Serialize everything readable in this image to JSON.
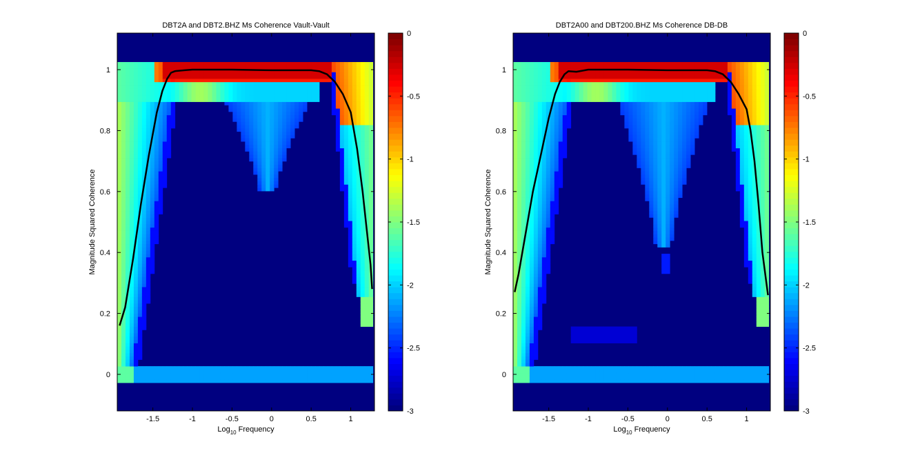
{
  "chart_data": [
    {
      "type": "heatmap",
      "title": "DBT2A and DBT2.BHZ Ms Coherence Vault-Vault",
      "xlabel_prefix": "Log",
      "xlabel_sub": "10",
      "xlabel_suffix": " Frequency",
      "ylabel": "Magnitude Squared Coherence",
      "xlim": [
        -1.95,
        1.3
      ],
      "ylim": [
        -0.12,
        1.12
      ],
      "xticks": [
        -1.5,
        -1,
        -0.5,
        0,
        0.5,
        1
      ],
      "xtick_labels": [
        "-1.5",
        "-1",
        "-0.5",
        "0",
        "0.5",
        "1"
      ],
      "yticks": [
        0,
        0.2,
        0.4,
        0.6,
        0.8,
        1
      ],
      "ytick_labels": [
        "0",
        "0.2",
        "0.4",
        "0.6",
        "0.8",
        "1"
      ],
      "colorbar": {
        "colormap": "jet",
        "clim": [
          -3,
          0
        ],
        "ticks": [
          0,
          -0.5,
          -1,
          -1.5,
          -2,
          -2.5,
          -3
        ],
        "tick_labels": [
          "0",
          "-0.5",
          "-1",
          "-1.5",
          "-2",
          "-2.5",
          "-3"
        ]
      },
      "mean_curve": {
        "color": "#000000",
        "x": [
          -1.92,
          -1.85,
          -1.75,
          -1.65,
          -1.55,
          -1.45,
          -1.38,
          -1.32,
          -1.27,
          -1.22,
          -1.1,
          -1.0,
          -0.5,
          0.0,
          0.5,
          0.6,
          0.7,
          0.8,
          0.9,
          1.0,
          1.08,
          1.15,
          1.2,
          1.25,
          1.27
        ],
        "y": [
          0.16,
          0.22,
          0.38,
          0.56,
          0.72,
          0.86,
          0.93,
          0.97,
          0.99,
          0.995,
          0.998,
          1.0,
          1.0,
          0.998,
          0.998,
          0.995,
          0.985,
          0.96,
          0.92,
          0.86,
          0.74,
          0.6,
          0.48,
          0.36,
          0.28
        ]
      },
      "heatmap_description": {
        "left_band_x": [
          -1.95,
          -1.3
        ],
        "right_band_x": [
          0.75,
          1.28
        ],
        "top_band_y": [
          0.96,
          1.02
        ],
        "zero_band_y": [
          -0.03,
          0.03
        ],
        "central_plume_bottom_y": 0.6
      }
    },
    {
      "type": "heatmap",
      "title": "DBT2A00 and DBT200.BHZ Ms Coherence DB-DB",
      "xlabel_prefix": "Log",
      "xlabel_sub": "10",
      "xlabel_suffix": " Frequency",
      "ylabel": "Magnitude Squared Coherence",
      "xlim": [
        -1.95,
        1.3
      ],
      "ylim": [
        -0.12,
        1.12
      ],
      "xticks": [
        -1.5,
        -1,
        -0.5,
        0,
        0.5,
        1
      ],
      "xtick_labels": [
        "-1.5",
        "-1",
        "-0.5",
        "0",
        "0.5",
        "1"
      ],
      "yticks": [
        0,
        0.2,
        0.4,
        0.6,
        0.8,
        1
      ],
      "ytick_labels": [
        "0",
        "0.2",
        "0.4",
        "0.6",
        "0.8",
        "1"
      ],
      "colorbar": {
        "colormap": "jet",
        "clim": [
          -3,
          0
        ],
        "ticks": [
          0,
          -0.5,
          -1,
          -1.5,
          -2,
          -2.5,
          -3
        ],
        "tick_labels": [
          "0",
          "-0.5",
          "-1",
          "-1.5",
          "-2",
          "-2.5",
          "-3"
        ]
      },
      "mean_curve": {
        "color": "#000000",
        "x": [
          -1.93,
          -1.88,
          -1.8,
          -1.7,
          -1.6,
          -1.5,
          -1.42,
          -1.36,
          -1.3,
          -1.25,
          -1.15,
          -1.0,
          -0.5,
          0.0,
          0.5,
          0.6,
          0.7,
          0.8,
          0.9,
          1.0,
          1.05,
          1.1,
          1.15,
          1.2,
          1.27
        ],
        "y": [
          0.27,
          0.33,
          0.45,
          0.6,
          0.72,
          0.84,
          0.92,
          0.96,
          0.985,
          0.995,
          0.993,
          1.0,
          1.0,
          0.998,
          0.998,
          0.995,
          0.985,
          0.96,
          0.92,
          0.87,
          0.8,
          0.7,
          0.56,
          0.4,
          0.26
        ]
      },
      "heatmap_description": {
        "left_band_x": [
          -1.95,
          -1.3
        ],
        "right_band_x": [
          0.75,
          1.28
        ],
        "top_band_y": [
          0.96,
          1.02
        ],
        "zero_band_y": [
          -0.03,
          0.03
        ],
        "central_plume_bottom_y": 0.42
      }
    }
  ]
}
